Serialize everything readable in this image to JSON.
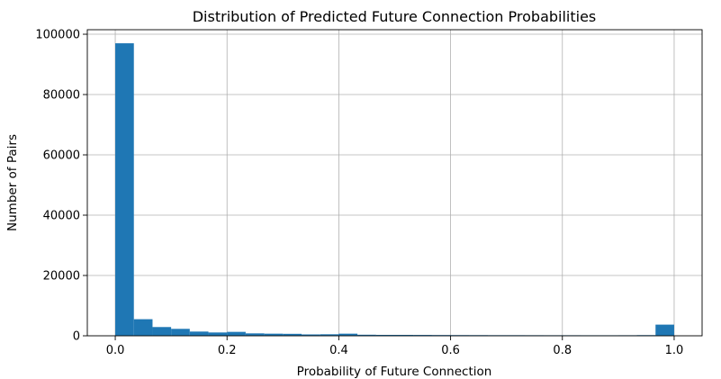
{
  "chart_data": {
    "type": "bar",
    "title": "Distribution of Predicted Future Connection Probabilities",
    "xlabel": "Probability of Future Connection",
    "ylabel": "Number of Pairs",
    "xlim": [
      -0.05,
      1.05
    ],
    "ylim": [
      0,
      101500
    ],
    "grid": true,
    "bar_color": "#1f77b4",
    "bin_edges": [
      0.0,
      0.0333,
      0.0667,
      0.1,
      0.1333,
      0.1667,
      0.2,
      0.2333,
      0.2667,
      0.3,
      0.3333,
      0.3667,
      0.4,
      0.4333,
      0.4667,
      0.5,
      0.5333,
      0.5667,
      0.6,
      0.6333,
      0.6667,
      0.7,
      0.7333,
      0.7667,
      0.8,
      0.8333,
      0.8667,
      0.9,
      0.9333,
      0.9667,
      1.0
    ],
    "values": [
      97000,
      5500,
      2900,
      2300,
      1400,
      1100,
      1300,
      800,
      700,
      650,
      450,
      500,
      700,
      350,
      300,
      300,
      280,
      250,
      230,
      220,
      200,
      200,
      190,
      180,
      180,
      170,
      170,
      180,
      220,
      3700
    ],
    "x_ticks": [
      {
        "value": 0.0,
        "label": "0.0"
      },
      {
        "value": 0.2,
        "label": "0.2"
      },
      {
        "value": 0.4,
        "label": "0.4"
      },
      {
        "value": 0.6,
        "label": "0.6"
      },
      {
        "value": 0.8,
        "label": "0.8"
      },
      {
        "value": 1.0,
        "label": "1.0"
      }
    ],
    "y_ticks": [
      {
        "value": 0,
        "label": "0"
      },
      {
        "value": 20000,
        "label": "20000"
      },
      {
        "value": 40000,
        "label": "40000"
      },
      {
        "value": 60000,
        "label": "60000"
      },
      {
        "value": 80000,
        "label": "80000"
      },
      {
        "value": 100000,
        "label": "100000"
      }
    ]
  }
}
